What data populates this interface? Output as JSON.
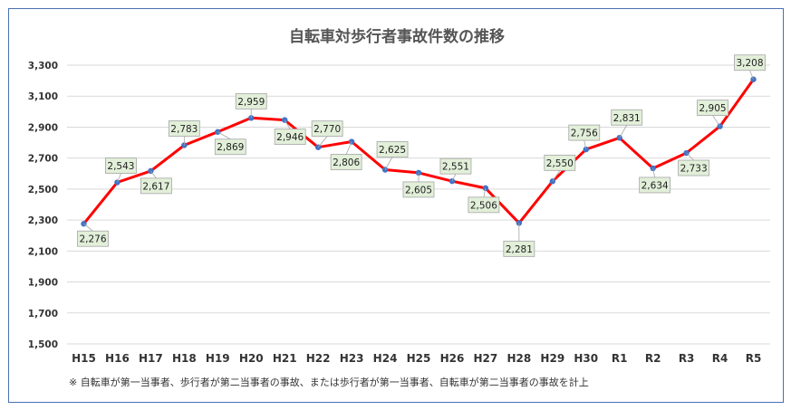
{
  "chart_data": {
    "type": "line",
    "title": "自転車対歩行者事故件数の推移",
    "note": "※ 自転車が第一当事者、歩行者が第二当事者の事故、または歩行者が第一当事者、自転車が第二当事者の事故を計上",
    "categories": [
      "H15",
      "H16",
      "H17",
      "H18",
      "H19",
      "H20",
      "H21",
      "H22",
      "H23",
      "H24",
      "H25",
      "H26",
      "H27",
      "H28",
      "H29",
      "H30",
      "R1",
      "R2",
      "R3",
      "R4",
      "R5"
    ],
    "series": [
      {
        "values": [
          2276,
          2543,
          2617,
          2783,
          2869,
          2959,
          2946,
          2770,
          2806,
          2625,
          2605,
          2551,
          2506,
          2281,
          2550,
          2756,
          2831,
          2634,
          2733,
          2905,
          3208
        ],
        "labels": [
          "2,276",
          "2,543",
          "2,617",
          "2,783",
          "2,869",
          "2,959",
          "2,946",
          "2,770",
          "2,806",
          "2,625",
          "2,605",
          "2,551",
          "2,506",
          "2,281",
          "2,550",
          "2,756",
          "2,831",
          "2,634",
          "2,733",
          "2,905",
          "3,208"
        ]
      }
    ],
    "ylim": [
      1500,
      3300
    ],
    "yticks": [
      "1,500",
      "1,700",
      "1,900",
      "2,100",
      "2,300",
      "2,500",
      "2,700",
      "2,900",
      "3,100",
      "3,300"
    ],
    "grid": true,
    "line_color": "#ff0000",
    "marker_color": "#4472c4",
    "label_box_color": "#e2efd9"
  }
}
